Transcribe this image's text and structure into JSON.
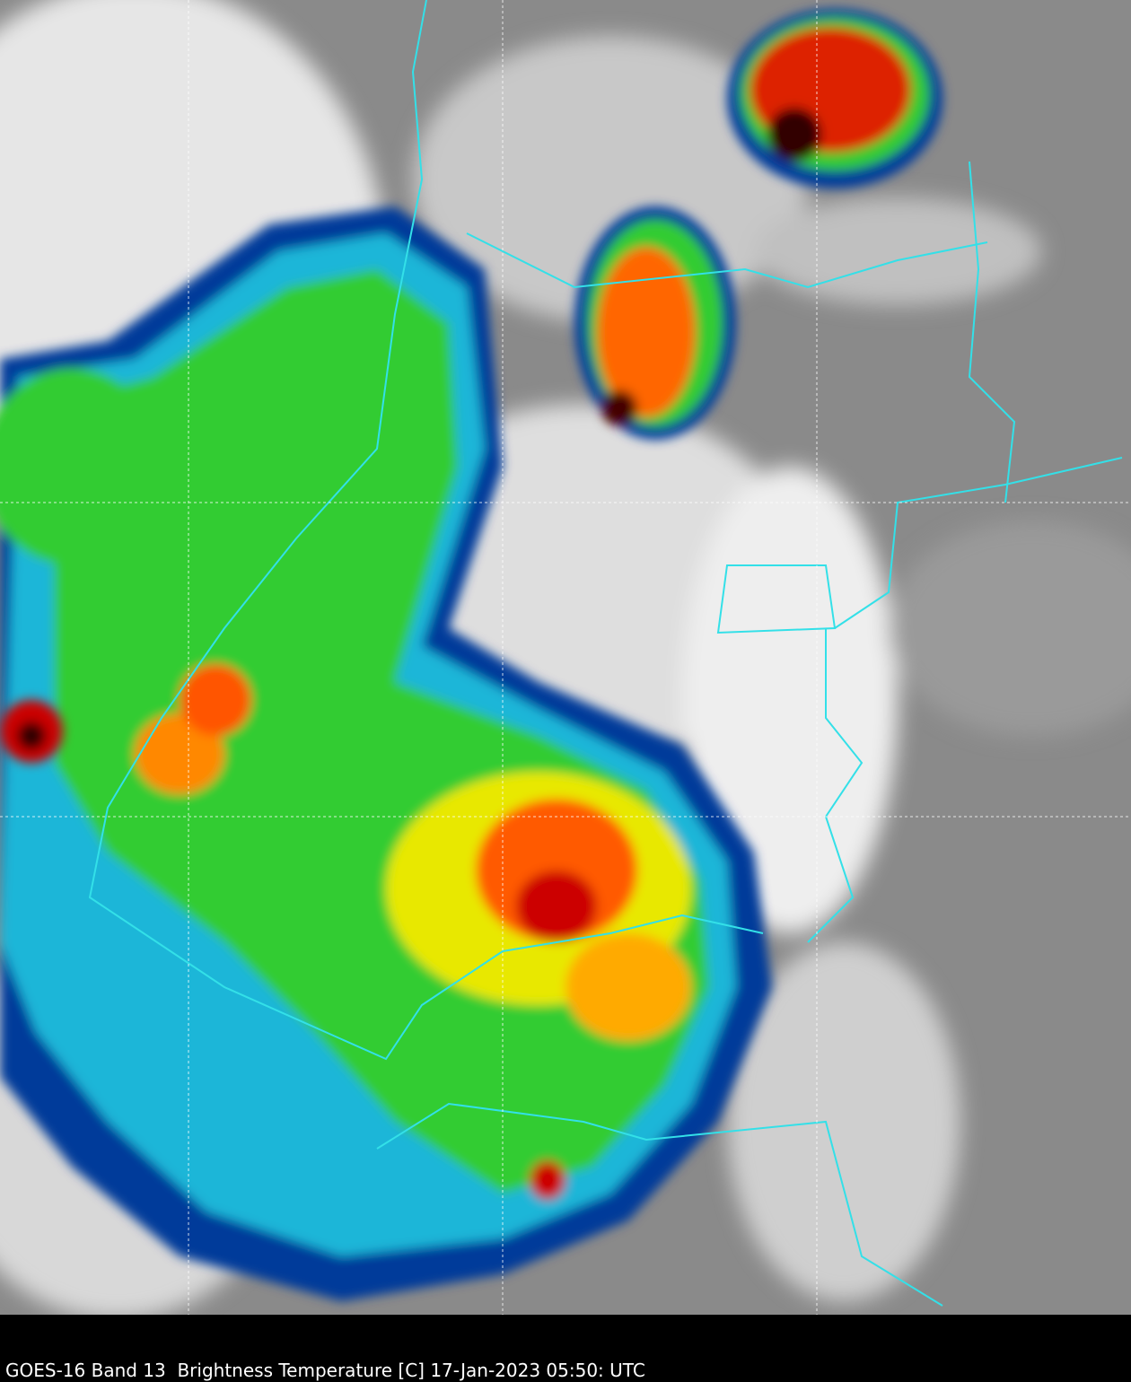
{
  "caption": "GOES-16 Band 13  Brightness Temperature [C] 17-Jan-2023 05:50: UTC"
}
